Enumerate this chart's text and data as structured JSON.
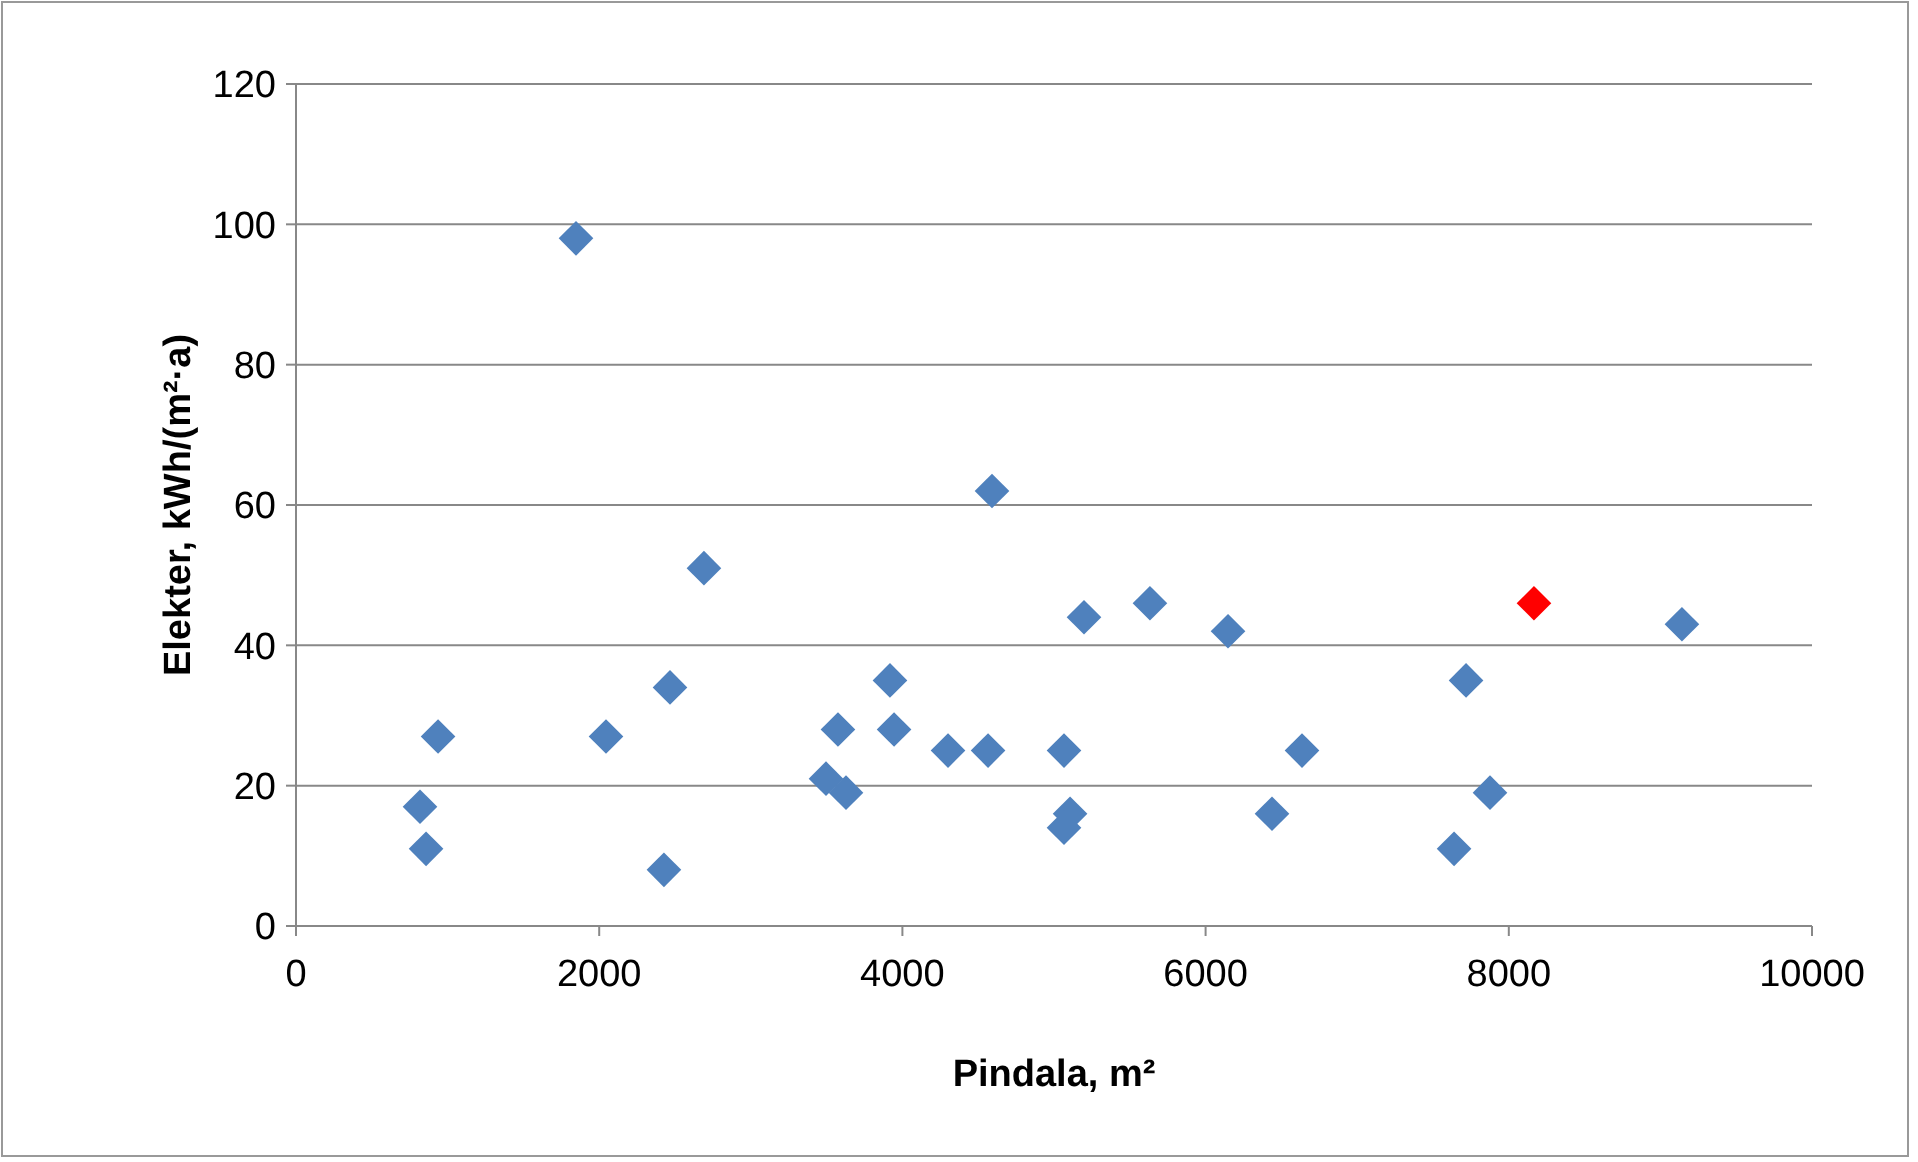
{
  "chart_data": {
    "type": "scatter",
    "xlabel": "Pindala, m²",
    "ylabel": "Elekter, kWh/(m²·a)",
    "xlim": [
      0,
      10000
    ],
    "xticks": [
      0,
      2000,
      4000,
      6000,
      8000,
      10000
    ],
    "ylim": [
      0,
      120
    ],
    "yticks": [
      0,
      20,
      40,
      60,
      80,
      100,
      120
    ],
    "grid": "y",
    "marker": "diamond",
    "series": [
      {
        "color": "#4f81bd",
        "x": [
          818,
          858,
          937,
          1847,
          2045,
          2467,
          2427,
          2691,
          3496,
          3575,
          3628,
          3918,
          3945,
          4301,
          4565,
          4591,
          5066,
          5106,
          5066,
          5198,
          5633,
          6148,
          6438,
          6636,
          7639,
          7718,
          7876,
          9142
        ],
        "values": [
          17,
          11,
          27,
          98,
          27,
          34,
          8,
          51,
          21,
          28,
          19,
          35,
          28,
          25,
          25,
          62,
          25,
          16,
          14,
          44,
          46,
          42,
          16,
          25,
          11,
          35,
          19,
          43
        ]
      },
      {
        "color": "#ff0000",
        "x": [
          8166
        ],
        "values": [
          46
        ]
      }
    ]
  }
}
